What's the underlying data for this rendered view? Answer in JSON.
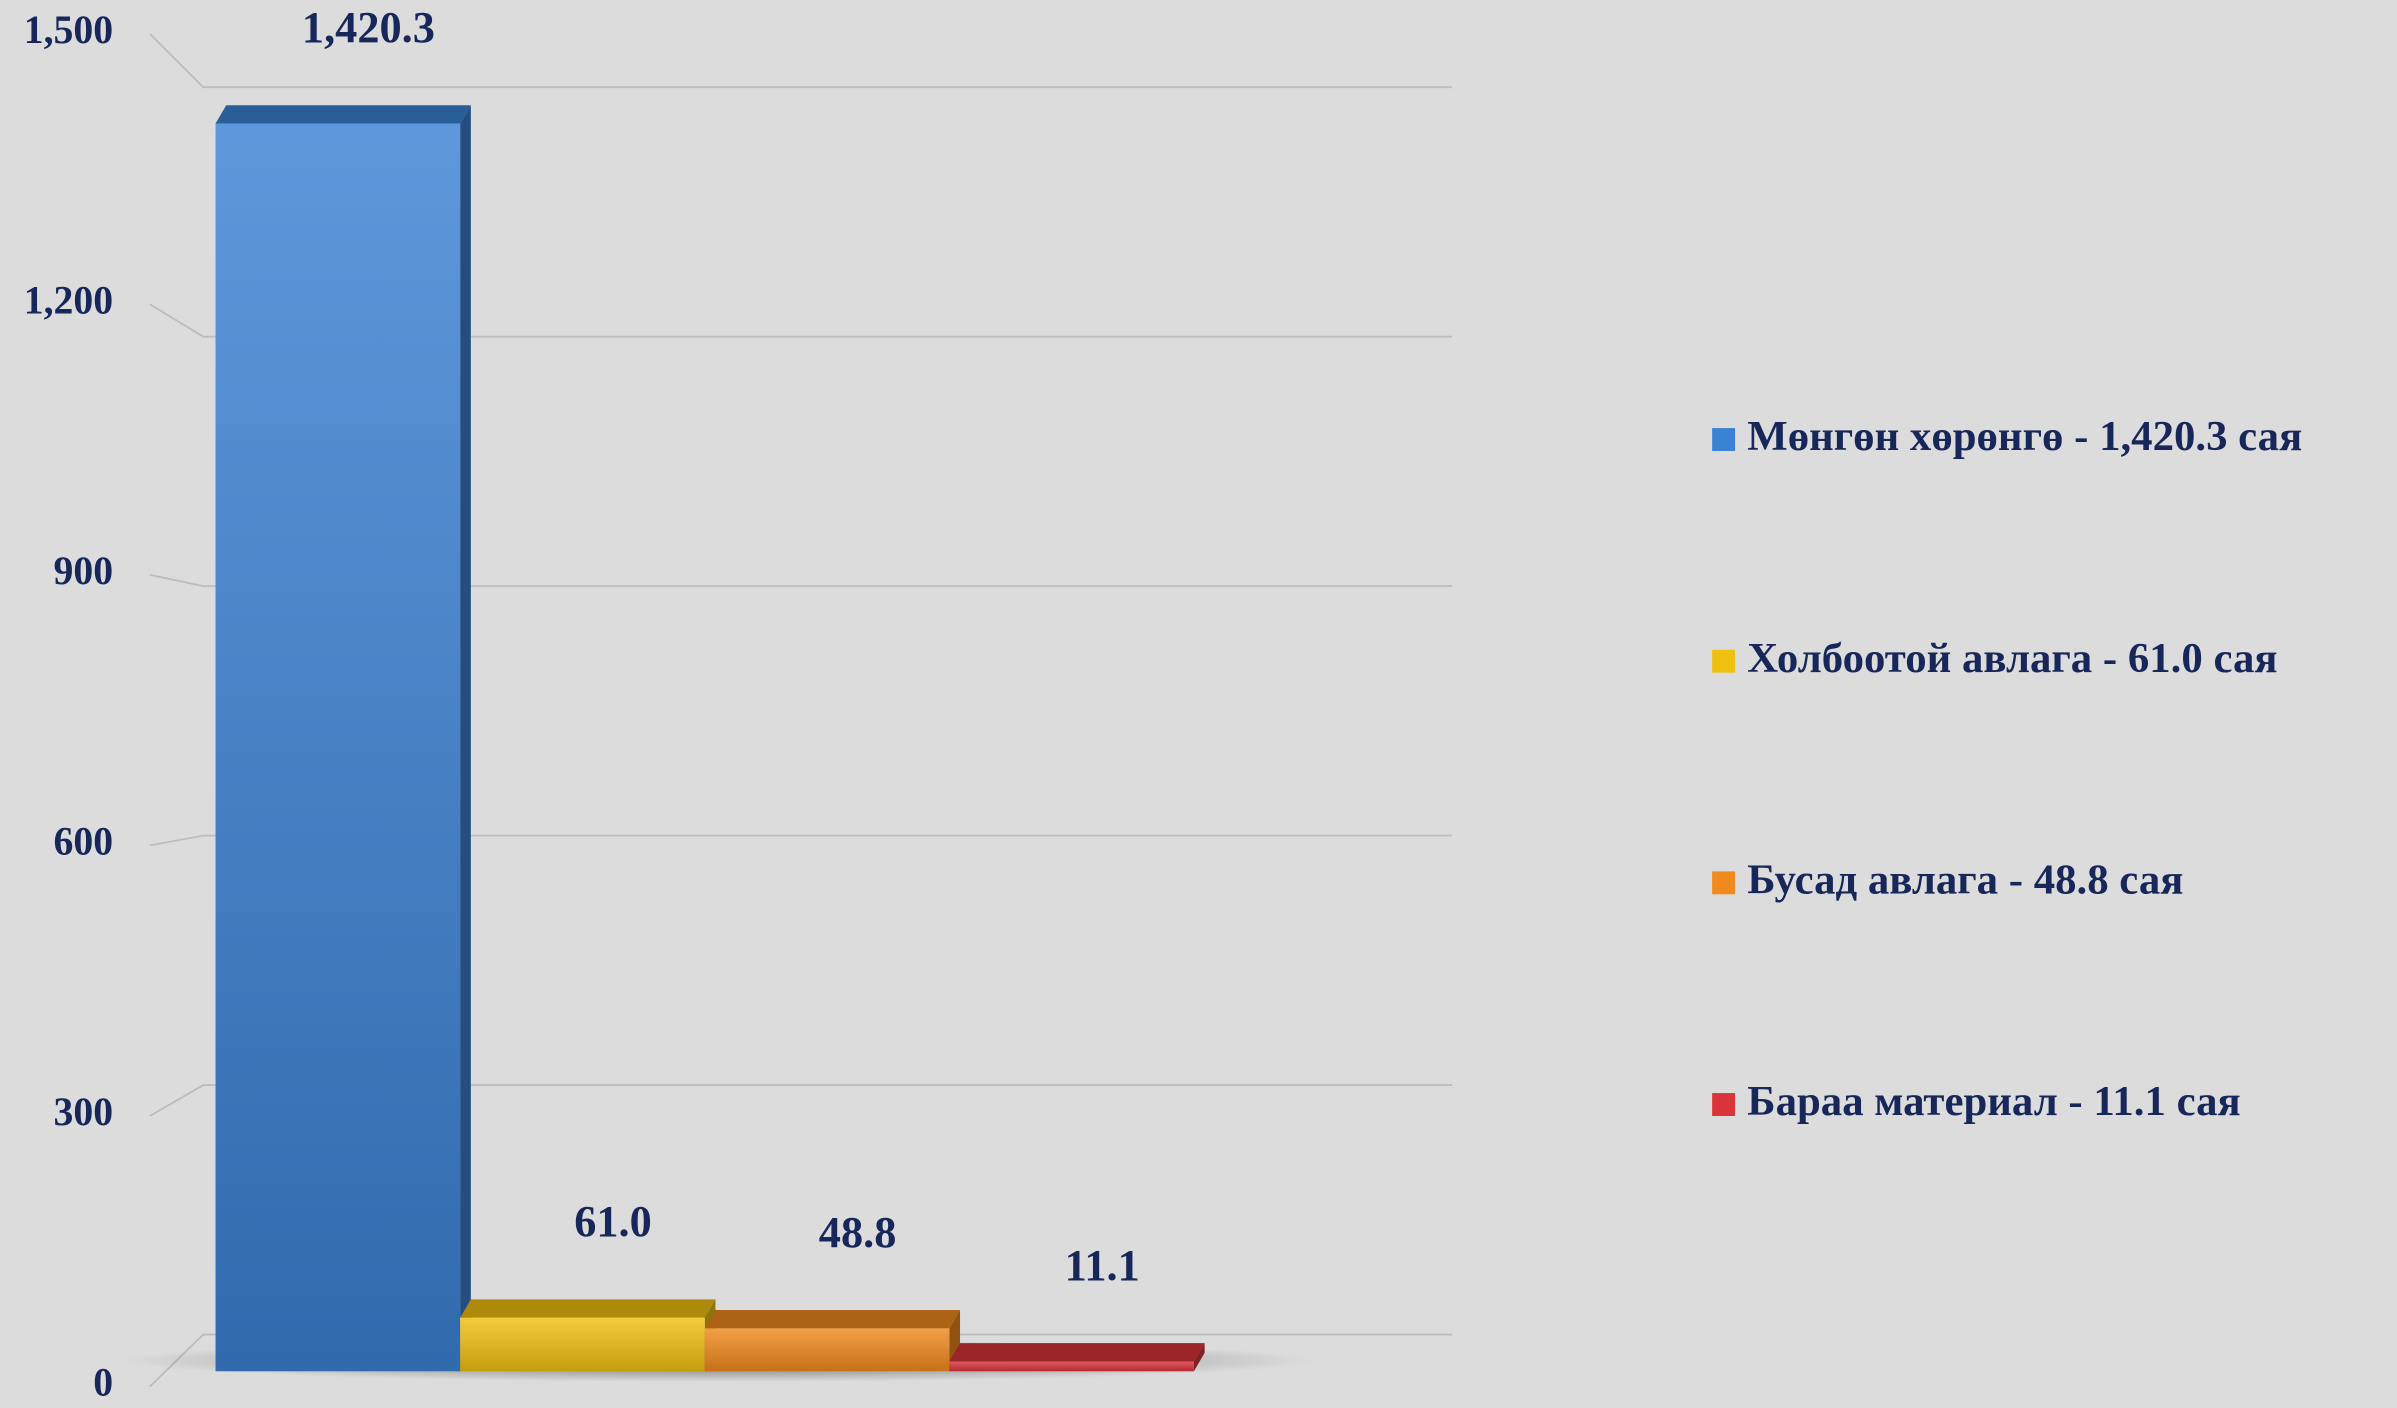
{
  "chart_data": {
    "type": "bar3d",
    "series": [
      {
        "name": "Мөнгөн хөрөнгө - 1,420.3 сая",
        "color": "#3b82d4",
        "values": [
          1420.3
        ],
        "value_labels": [
          "1,420.3"
        ]
      },
      {
        "name": "Холбоотой авлага - 61.0 сая",
        "color": "#f0c010",
        "values": [
          61
        ],
        "value_labels": [
          "61.0"
        ]
      },
      {
        "name": "Бусад авлага - 48.8 сая",
        "color": "#f08a1e",
        "values": [
          48.8
        ]
      },
      {
        "name": "Бараа материал - 11.1 сая",
        "color": "#d8343a",
        "values": [
          11.1
        ]
      }
    ],
    "ylim": [
      0,
      1500
    ],
    "yticks": [
      0,
      300,
      600,
      900,
      {
        "value": 1200,
        "label": "1,200"
      },
      {
        "value": 1500,
        "label": "1,500"
      }
    ],
    "grid": true,
    "legend": "right"
  }
}
